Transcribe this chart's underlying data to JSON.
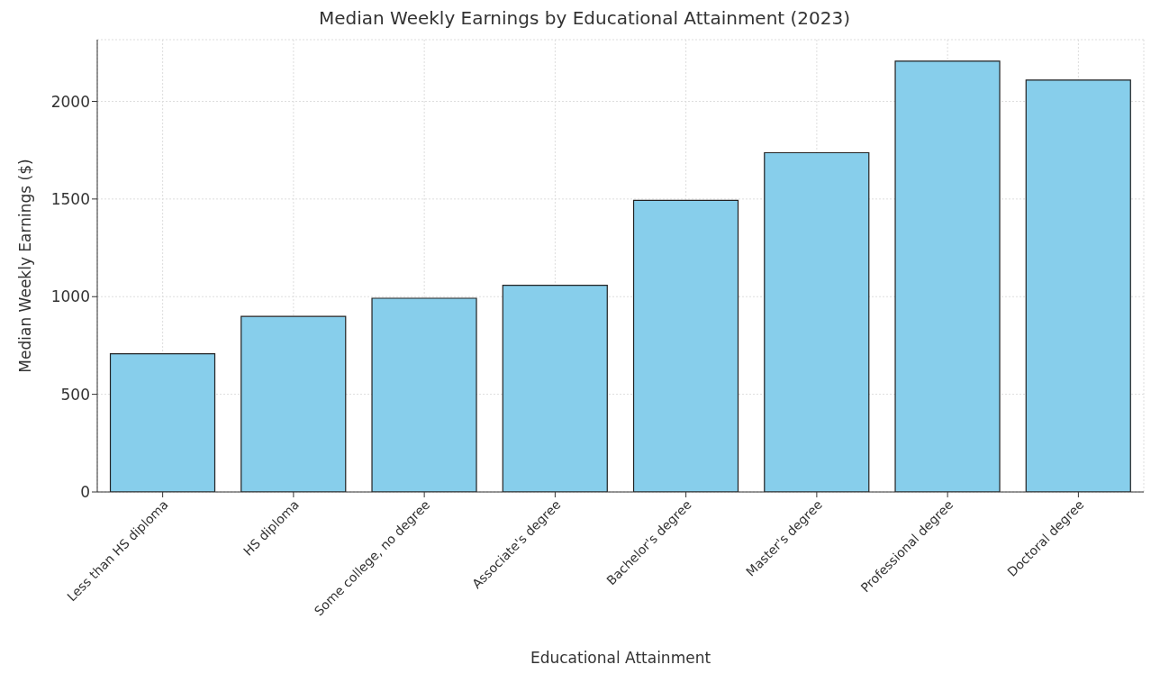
{
  "chart_data": {
    "type": "bar",
    "title": "Median Weekly Earnings by Educational Attainment (2023)",
    "xlabel": "Educational Attainment",
    "ylabel": "Median Weekly Earnings ($)",
    "categories": [
      "Less than HS diploma",
      "HS diploma",
      "Some college, no degree",
      "Associate's degree",
      "Bachelor's degree",
      "Master's degree",
      "Professional degree",
      "Doctoral degree"
    ],
    "values": [
      708,
      899,
      992,
      1058,
      1493,
      1737,
      2206,
      2109
    ],
    "color": "#87ceeb",
    "ylim": [
      0,
      2316
    ],
    "yticks": [
      0,
      500,
      1000,
      1500,
      2000
    ],
    "grid": true
  }
}
